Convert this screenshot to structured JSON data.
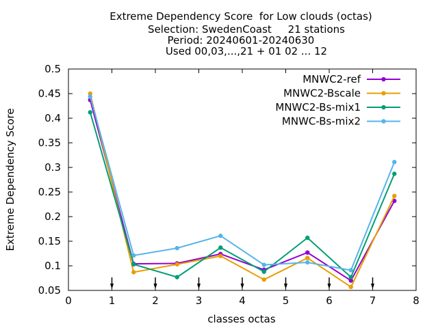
{
  "chart_data": {
    "type": "line",
    "title_lines": [
      "Extreme Dependency Score  for Low clouds (octas)",
      "Selection: SwedenCoast     21 stations",
      "Period: 20240601-20240630",
      "Used 00,03,...,21 + 01 02 ... 12"
    ],
    "xlabel": "classes octas",
    "ylabel": "Extreme Dependency Score",
    "xlim": [
      0,
      8
    ],
    "ylim": [
      0.05,
      0.5
    ],
    "xticks": [
      "0",
      "1",
      "2",
      "3",
      "4",
      "5",
      "6",
      "7",
      "8"
    ],
    "yticks": [
      "0.05",
      "0.1",
      "0.15",
      "0.2",
      "0.25",
      "0.3",
      "0.35",
      "0.4",
      "0.45",
      "0.5"
    ],
    "x": [
      0.5,
      1.5,
      2.5,
      3.5,
      4.5,
      5.5,
      6.5,
      7.5
    ],
    "arrow_positions": [
      1,
      2,
      3,
      4,
      5,
      6,
      7
    ],
    "legend_position": "top-right",
    "series": [
      {
        "name": "MNWC2-ref",
        "color": "#9400d3",
        "values": [
          0.437,
          0.104,
          0.105,
          0.124,
          0.092,
          0.127,
          0.07,
          0.232
        ]
      },
      {
        "name": "MNWC2-Bscale",
        "color": "#e69f00",
        "values": [
          0.45,
          0.087,
          0.103,
          0.12,
          0.072,
          0.116,
          0.057,
          0.242
        ]
      },
      {
        "name": "MNWC2-Bs-mix1",
        "color": "#009e73",
        "values": [
          0.412,
          0.103,
          0.077,
          0.137,
          0.088,
          0.157,
          0.077,
          0.287
        ]
      },
      {
        "name": "MNWC-Bs-mix2",
        "color": "#56b4e9",
        "values": [
          0.444,
          0.121,
          0.136,
          0.161,
          0.102,
          0.107,
          0.091,
          0.311
        ]
      }
    ]
  }
}
